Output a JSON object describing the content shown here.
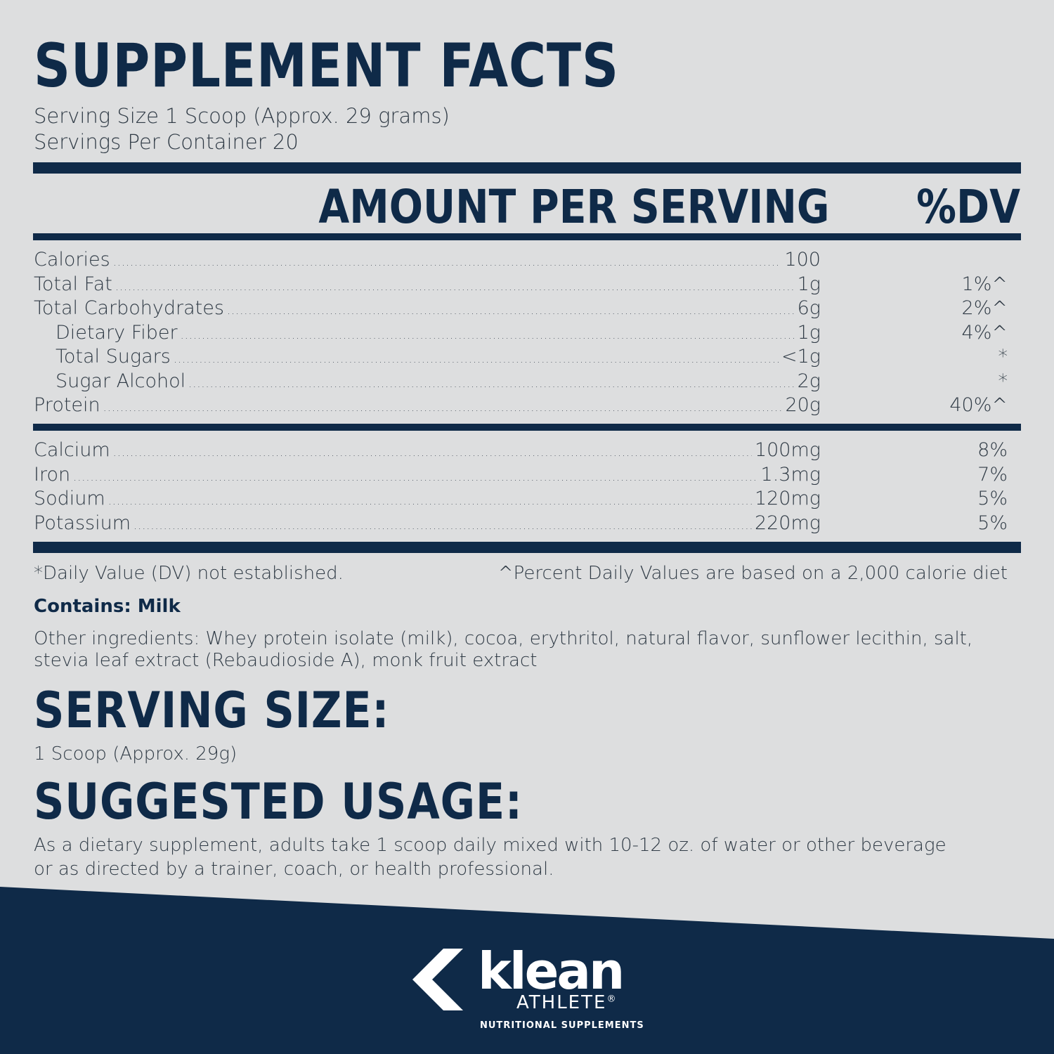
{
  "title": "SUPPLEMENT FACTS",
  "serving_size_line": "Serving Size 1 Scoop (Approx. 29 grams)",
  "servings_per_line": "Servings Per Container 20",
  "header": {
    "amount": "AMOUNT PER SERVING",
    "dv": "%DV"
  },
  "nutrients_main": [
    {
      "name": "Calories",
      "amount": "100",
      "dv": "",
      "indent": false
    },
    {
      "name": "Total Fat",
      "amount": "1g",
      "dv": "1%^",
      "indent": false
    },
    {
      "name": "Total Carbohydrates",
      "amount": "6g",
      "dv": "2%^",
      "indent": false
    },
    {
      "name": "Dietary Fiber",
      "amount": "1g",
      "dv": "4%^",
      "indent": true
    },
    {
      "name": "Total Sugars",
      "amount": "<1g",
      "dv": "*",
      "indent": true
    },
    {
      "name": "Sugar Alcohol",
      "amount": "2g",
      "dv": "*",
      "indent": true
    },
    {
      "name": "Protein",
      "amount": "20g",
      "dv": "40%^",
      "indent": false
    }
  ],
  "nutrients_minerals": [
    {
      "name": "Calcium",
      "amount": "100mg",
      "dv": "8%"
    },
    {
      "name": "Iron",
      "amount": "1.3mg",
      "dv": "7%"
    },
    {
      "name": "Sodium",
      "amount": "120mg",
      "dv": "5%"
    },
    {
      "name": "Potassium",
      "amount": "220mg",
      "dv": "5%"
    }
  ],
  "dv_note": "*Daily Value (DV) not established.",
  "pct_note": "^Percent Daily Values are based on a 2,000 calorie diet",
  "contains": "Contains: Milk",
  "ingredients": "Other ingredients: Whey protein isolate (milk), cocoa, erythritol, natural flavor, sunflower lecithin, salt, stevia leaf extract (Rebaudioside A), monk fruit extract",
  "serving_size_title": "SERVING SIZE:",
  "serving_size_text": "1 Scoop (Approx. 29g)",
  "usage_title": "SUGGESTED USAGE:",
  "usage_text": "As a dietary supplement, adults take 1 scoop daily mixed with 10-12 oz. of water or other beverage or as directed by a trainer, coach, or health professional.",
  "logo": {
    "word": "klean",
    "sub": "ATHLETE",
    "reg": "®",
    "tagline": "NUTRITIONAL SUPPLEMENTS"
  },
  "colors": {
    "navy": "#0f2a48",
    "background": "#dddedf",
    "text": "#2f3a45"
  }
}
